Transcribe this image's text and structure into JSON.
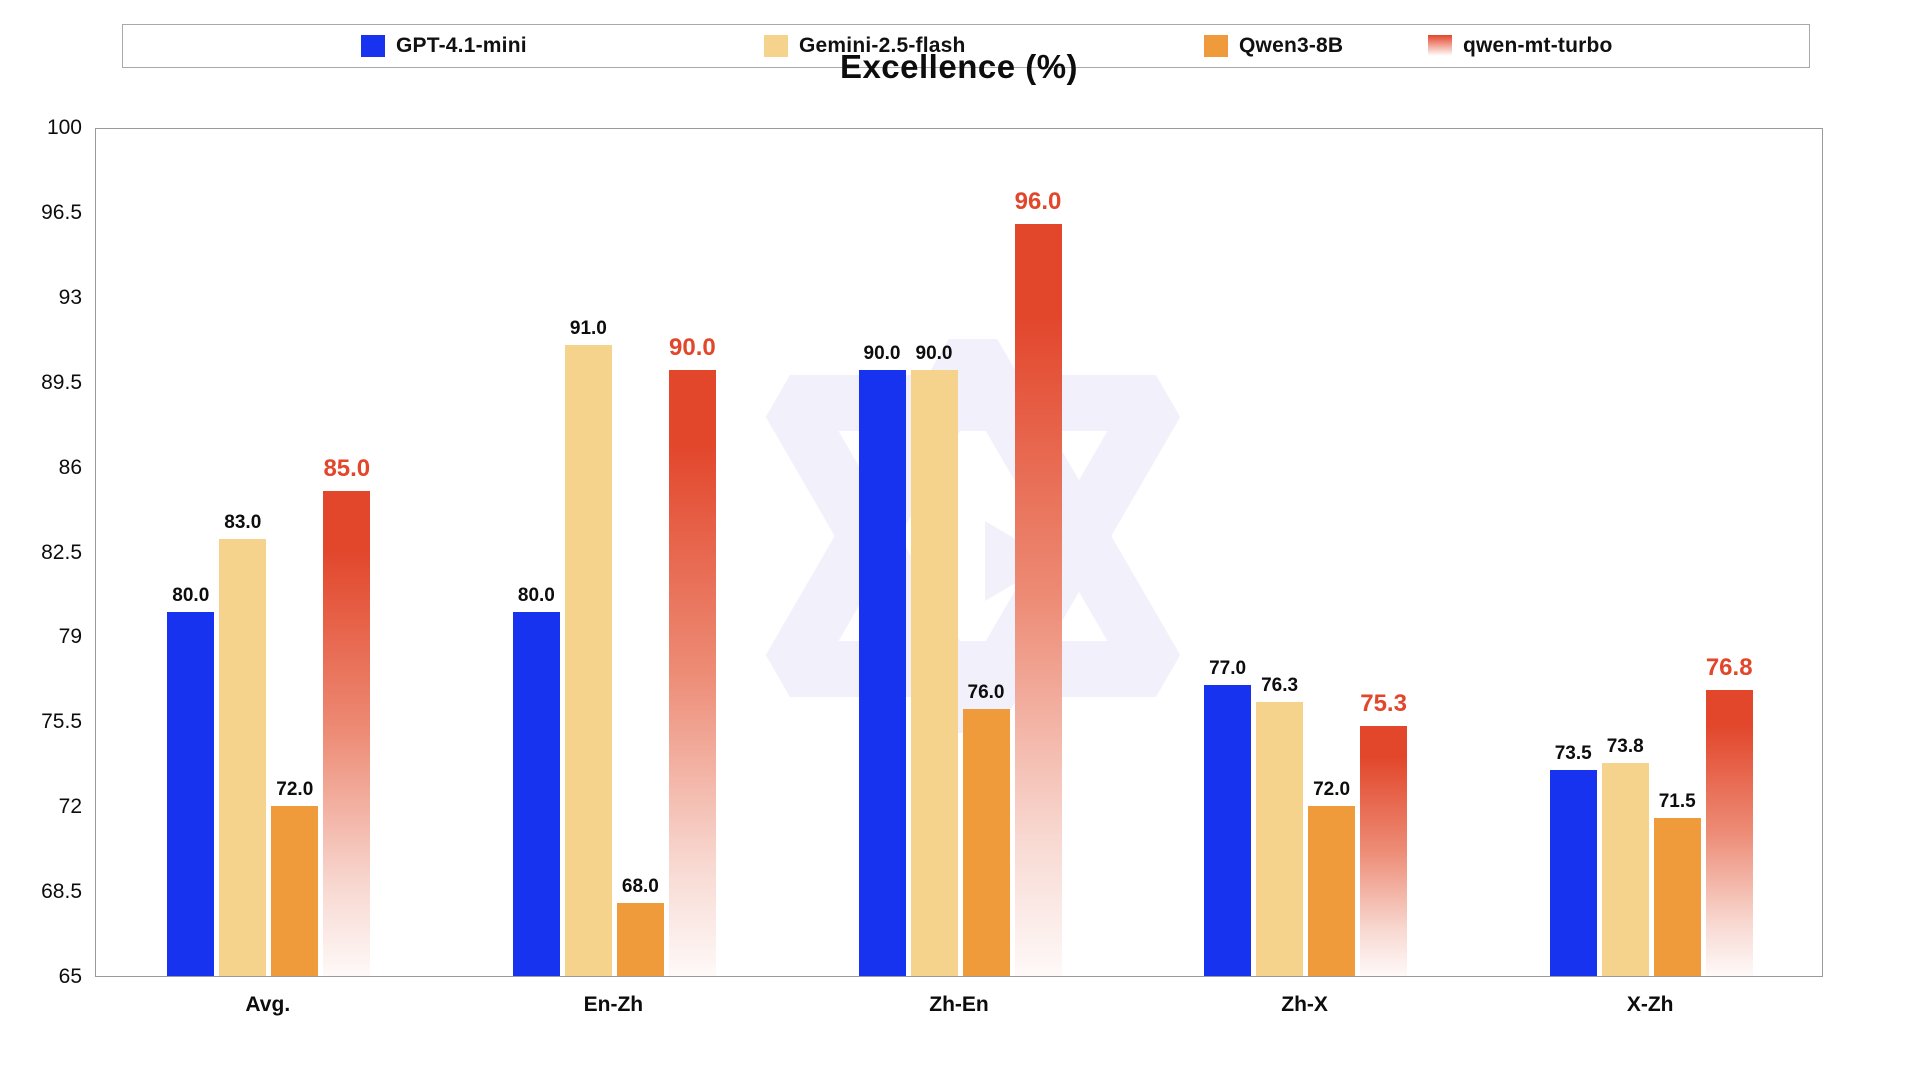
{
  "title": "Excellence (%)",
  "legend": {
    "items": [
      {
        "label": "GPT-4.1-mini"
      },
      {
        "label": "Gemini-2.5-flash"
      },
      {
        "label": "Qwen3-8B"
      },
      {
        "label": "qwen-mt-turbo"
      }
    ]
  },
  "chart_data": {
    "type": "bar",
    "title": "Excellence (%)",
    "categories": [
      "Avg.",
      "En-Zh",
      "Zh-En",
      "Zh-X",
      "X-Zh"
    ],
    "series": [
      {
        "name": "GPT-4.1-mini",
        "color": "#1733EF",
        "gradient": false,
        "emphasis": false,
        "values": [
          80.0,
          80.0,
          90.0,
          77.0,
          73.5
        ]
      },
      {
        "name": "Gemini-2.5-flash",
        "color": "#F5D38C",
        "gradient": false,
        "emphasis": false,
        "values": [
          83.0,
          91.0,
          90.0,
          76.3,
          73.8
        ]
      },
      {
        "name": "Qwen3-8B",
        "color": "#F09B3B",
        "gradient": false,
        "emphasis": false,
        "values": [
          72.0,
          68.0,
          76.0,
          72.0,
          71.5
        ]
      },
      {
        "name": "qwen-mt-turbo",
        "color": "#E2462B",
        "gradient": true,
        "emphasis": true,
        "values": [
          85.0,
          90.0,
          96.0,
          75.3,
          76.8
        ]
      }
    ],
    "ylim": [
      65,
      100
    ],
    "yticks": [
      65,
      68.5,
      72,
      75.5,
      79,
      82.5,
      86,
      89.5,
      93,
      96.5,
      100
    ],
    "value_label_format": "one_decimal",
    "grid": false,
    "legend_position": "top"
  },
  "watermark": {
    "name": "qwen-logo-watermark",
    "color": "#F2F1FB"
  },
  "colors": {
    "emphasis_label": "#E2462B",
    "axis_border": "#9a9a9a",
    "text": "#0d0d0d",
    "background": "#ffffff"
  }
}
